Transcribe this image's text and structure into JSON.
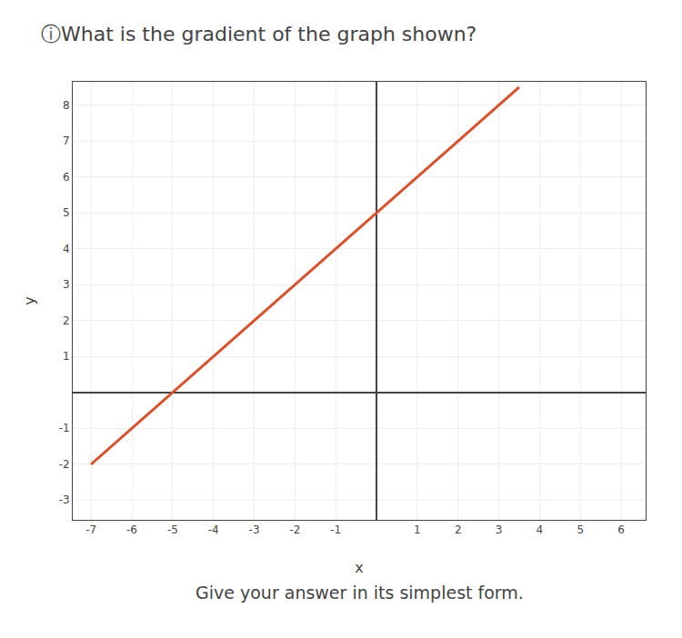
{
  "chart_data": {
    "type": "line",
    "title": "ⓘWhat is the gradient of the graph shown?",
    "subtitle": "Give your answer in its simplest form.",
    "x_label": "x",
    "y_label": "y",
    "x": [
      -7.0,
      3.5
    ],
    "values": [
      -2.0,
      8.5
    ],
    "color": "#d9512c",
    "xlim": [
      -7.45,
      6.6
    ],
    "ylim": [
      -3.55,
      8.65
    ],
    "xticks": [
      -7,
      -6,
      -5,
      -4,
      -3,
      -2,
      -1,
      1,
      2,
      3,
      4,
      5,
      6
    ],
    "yticks": [
      -3,
      -2,
      -1,
      1,
      2,
      3,
      4,
      5,
      6,
      7,
      8
    ],
    "grid": true
  }
}
